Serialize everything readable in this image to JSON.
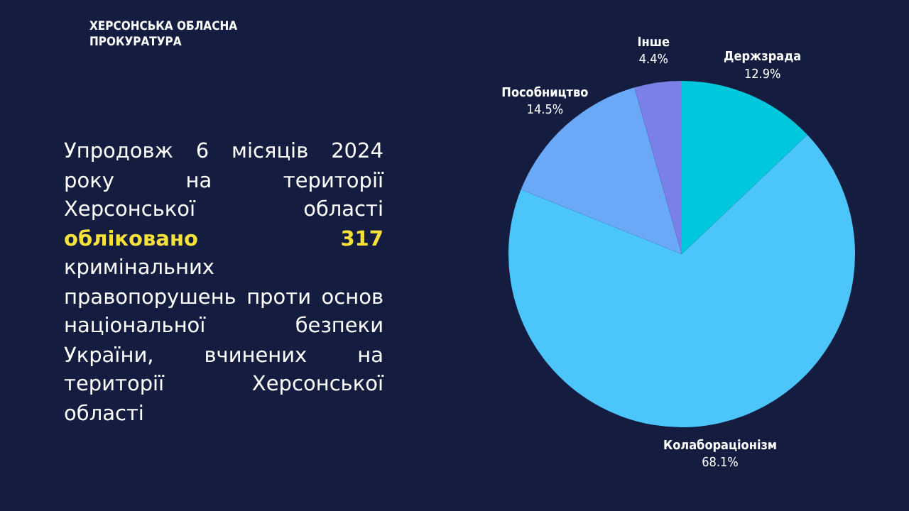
{
  "chart_data": {
    "type": "pie",
    "title": "ХЕРСОНСЬКА ОБЛАСНА ПРОКУРАТУРА",
    "annotations": [
      "Упродовж 6 місяців 2024 року на території Херсонської області ",
      "обліковано 317",
      " кримінальних правопорушень проти основ національної безпеки України, вчинених на території Херсонської області"
    ],
    "categories": [
      "Держзрада",
      "Колабораціонізм",
      "Пособництво",
      "Інше"
    ],
    "values": [
      12.9,
      68.1,
      14.5,
      4.4
    ],
    "value_labels": [
      "12.9%",
      "68.1%",
      "14.5%",
      "4.4%"
    ],
    "colors": [
      "#00c8dc",
      "#4cc6fa",
      "#6aa9f8",
      "#7b7fe8"
    ]
  }
}
